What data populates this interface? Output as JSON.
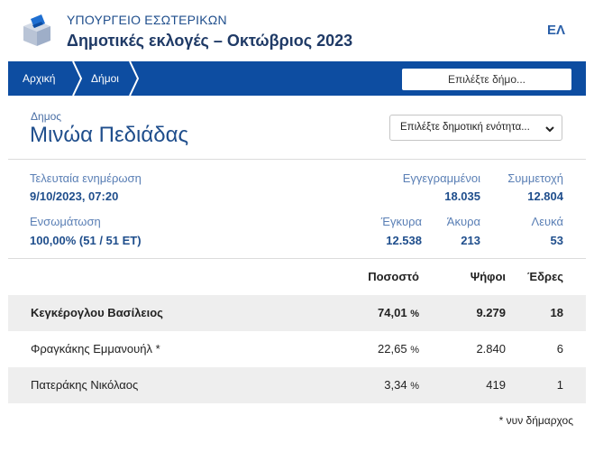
{
  "header": {
    "ministry": "ΥΠΟΥΡΓΕΙΟ ΕΣΩΤΕΡΙΚΩΝ",
    "title": "Δημοτικές εκλογές – Οκτώβριος 2023",
    "language": "ΕΛ"
  },
  "nav": {
    "breadcrumbs": [
      {
        "label": "Αρχική"
      },
      {
        "label": "Δήμοι"
      }
    ],
    "select_municipality": "Επιλέξτε δήμο..."
  },
  "municipality": {
    "label": "Δημος",
    "name": "Μινώα Πεδιάδας",
    "unit_select": "Επιλέξτε δημοτική ενότητα..."
  },
  "stats": {
    "last_update_label": "Τελευταία ενημέρωση",
    "last_update_value": "9/10/2023, 07:20",
    "registered_label": "Εγγεγραμμένοι",
    "registered_value": "18.035",
    "turnout_label": "Συμμετοχή",
    "turnout_value": "12.804",
    "integration_label": "Ενσωμάτωση",
    "integration_value": "100,00% (51 / 51 ΕΤ)",
    "valid_label": "Έγκυρα",
    "valid_value": "12.538",
    "invalid_label": "Άκυρα",
    "invalid_value": "213",
    "blank_label": "Λευκά",
    "blank_value": "53"
  },
  "results": {
    "columns": {
      "percent": "Ποσοστό",
      "votes": "Ψήφοι",
      "seats": "Έδρες"
    },
    "candidates": [
      {
        "name": "Κεγκέρογλου Βασίλειος",
        "percent": "74,01",
        "votes": "9.279",
        "seats": "18"
      },
      {
        "name": "Φραγκάκης Εμμανουήλ *",
        "percent": "22,65",
        "votes": "2.840",
        "seats": "6"
      },
      {
        "name": "Πατεράκης Νικόλαος",
        "percent": "3,34",
        "votes": "419",
        "seats": "1"
      }
    ],
    "percent_sign": "%",
    "footnote": "* νυν δήμαρχος"
  },
  "colors": {
    "navbar": "#0d4da1",
    "title_blue": "#1f4e8c",
    "label_blue": "#5a7fb5",
    "row_shade": "#eeeeee"
  },
  "icons": {
    "logo": "ballot-box-icon",
    "dropdown": "chevron-down-icon"
  }
}
